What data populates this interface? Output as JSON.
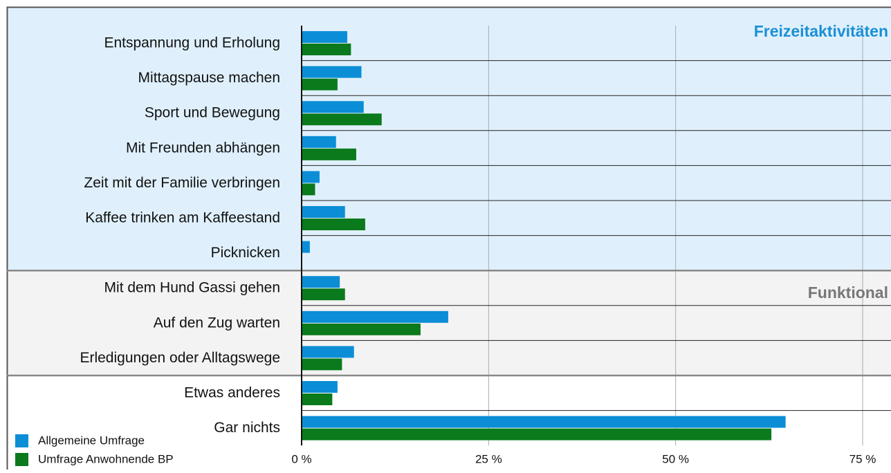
{
  "chart_data": {
    "type": "bar",
    "orientation": "horizontal",
    "categories": [
      "Entspannung und Erholung",
      "Mittagspause machen",
      "Sport und Bewegung",
      "Mit Freunden abhängen",
      "Zeit mit der Familie verbringen",
      "Kaffee trinken am Kaffeestand",
      "Picknicken",
      "Mit dem Hund Gassi gehen",
      "Auf den Zug warten",
      "Erledigungen oder Alltagswege",
      "Etwas anderes",
      "Gar nichts"
    ],
    "series": [
      {
        "name": "Allgemeine Umfrage",
        "color": "#0b8ed6",
        "values": [
          6.1,
          8.0,
          8.3,
          4.6,
          2.4,
          5.8,
          1.1,
          5.1,
          19.6,
          7.0,
          4.8,
          64.7
        ]
      },
      {
        "name": "Umfrage Anwohnende BP",
        "color": "#0a7a1c",
        "values": [
          6.6,
          4.8,
          10.7,
          7.3,
          1.8,
          8.5,
          0,
          5.8,
          15.9,
          5.4,
          4.1,
          62.8
        ]
      }
    ],
    "annotations": [
      "Freizeitaktivitäten",
      "Funktional"
    ],
    "xlim": [
      0,
      75
    ],
    "xticks": [
      {
        "value": 0,
        "label": "0 %"
      },
      {
        "value": 25,
        "label": "25 %"
      },
      {
        "value": 50,
        "label": "50 %"
      },
      {
        "value": 75,
        "label": "75 %"
      }
    ],
    "grid": true,
    "legend": "lower left"
  }
}
